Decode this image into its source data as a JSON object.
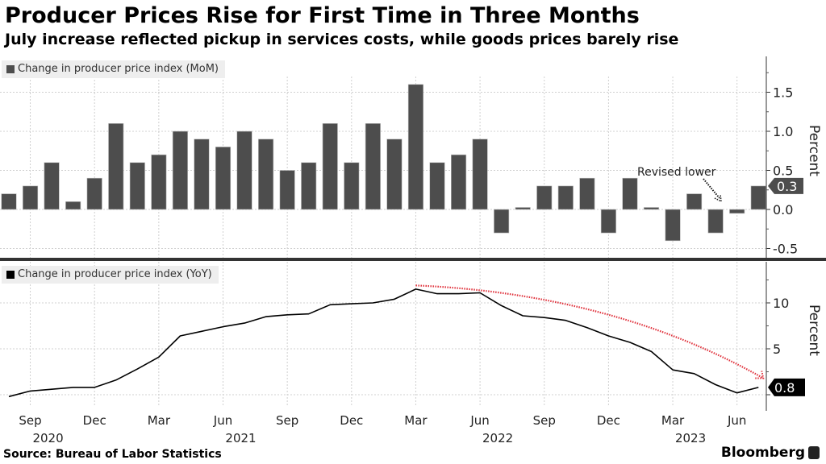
{
  "title": "Producer Prices Rise for First Time in Three Months",
  "subtitle": "July increase reflected pickup in services costs, while goods prices barely rise",
  "source": "Source: Bureau of Labor Statistics",
  "brand": "Bloomberg",
  "chart_data": [
    {
      "type": "bar",
      "name": "mom",
      "legend": "Change in producer price index (MoM)",
      "ylabel": "Percent",
      "ylim": [
        -0.6,
        1.9
      ],
      "yticks": [
        -0.5,
        0.0,
        0.5,
        1.0,
        1.5
      ],
      "ytick_labels": [
        "-0.5",
        "0.0",
        "0.5",
        "1.0",
        "1.5"
      ],
      "color": "#4d4d4d",
      "categories": [
        "2020-08",
        "2020-09",
        "2020-10",
        "2020-11",
        "2020-12",
        "2021-01",
        "2021-02",
        "2021-03",
        "2021-04",
        "2021-05",
        "2021-06",
        "2021-07",
        "2021-08",
        "2021-09",
        "2021-10",
        "2021-11",
        "2021-12",
        "2022-01",
        "2022-02",
        "2022-03",
        "2022-04",
        "2022-05",
        "2022-06",
        "2022-07",
        "2022-08",
        "2022-09",
        "2022-10",
        "2022-11",
        "2022-12",
        "2023-01",
        "2023-02",
        "2023-03",
        "2023-04",
        "2023-05",
        "2023-06",
        "2023-07"
      ],
      "values": [
        0.2,
        0.3,
        0.6,
        0.1,
        0.4,
        1.1,
        0.6,
        0.7,
        1.0,
        0.9,
        0.8,
        1.0,
        0.9,
        0.5,
        0.6,
        1.1,
        0.6,
        1.1,
        0.9,
        1.6,
        0.6,
        0.7,
        0.9,
        -0.3,
        0.0,
        0.3,
        0.3,
        0.4,
        -0.3,
        0.4,
        0.0,
        -0.4,
        0.2,
        -0.3,
        -0.05,
        0.3
      ],
      "last_value_label": "0.3",
      "annotation": "Revised lower",
      "grid": true
    },
    {
      "type": "line",
      "name": "yoy",
      "legend": "Change in producer price index (YoY)",
      "ylabel": "Percent",
      "ylim": [
        -1.5,
        14.5
      ],
      "yticks": [
        0,
        5,
        10
      ],
      "ytick_labels": [
        "0",
        "5",
        "10"
      ],
      "color": "#000000",
      "x": [
        "2020-08",
        "2020-09",
        "2020-10",
        "2020-11",
        "2020-12",
        "2021-01",
        "2021-02",
        "2021-03",
        "2021-04",
        "2021-05",
        "2021-06",
        "2021-07",
        "2021-08",
        "2021-09",
        "2021-10",
        "2021-11",
        "2021-12",
        "2022-01",
        "2022-02",
        "2022-03",
        "2022-04",
        "2022-05",
        "2022-06",
        "2022-07",
        "2022-08",
        "2022-09",
        "2022-10",
        "2022-11",
        "2022-12",
        "2023-01",
        "2023-02",
        "2023-03",
        "2023-04",
        "2023-05",
        "2023-06",
        "2023-07"
      ],
      "values": [
        -0.2,
        0.4,
        0.6,
        0.8,
        0.8,
        1.6,
        2.8,
        4.1,
        6.4,
        6.9,
        7.4,
        7.8,
        8.5,
        8.7,
        8.8,
        9.8,
        9.9,
        10.0,
        10.4,
        11.5,
        11.0,
        11.0,
        11.1,
        9.7,
        8.6,
        8.4,
        8.1,
        7.3,
        6.4,
        5.7,
        4.7,
        2.7,
        2.3,
        1.1,
        0.2,
        0.8
      ],
      "last_value_label": "0.8",
      "trend_arrow_color": "#e0323c",
      "grid": true
    }
  ],
  "xaxis": {
    "month_labels": [
      "Sep",
      "Dec",
      "Mar",
      "Jun",
      "Sep",
      "Dec",
      "Mar",
      "Jun",
      "Sep",
      "Dec",
      "Mar",
      "Jun"
    ],
    "month_label_dates": [
      "2020-09",
      "2020-12",
      "2021-03",
      "2021-06",
      "2021-09",
      "2021-12",
      "2022-03",
      "2022-06",
      "2022-09",
      "2022-12",
      "2023-03",
      "2023-06"
    ],
    "year_labels": [
      "2020",
      "2021",
      "2022",
      "2023"
    ],
    "year_label_dates": [
      "2020-09",
      "2021-06",
      "2022-06",
      "2023-03"
    ]
  }
}
